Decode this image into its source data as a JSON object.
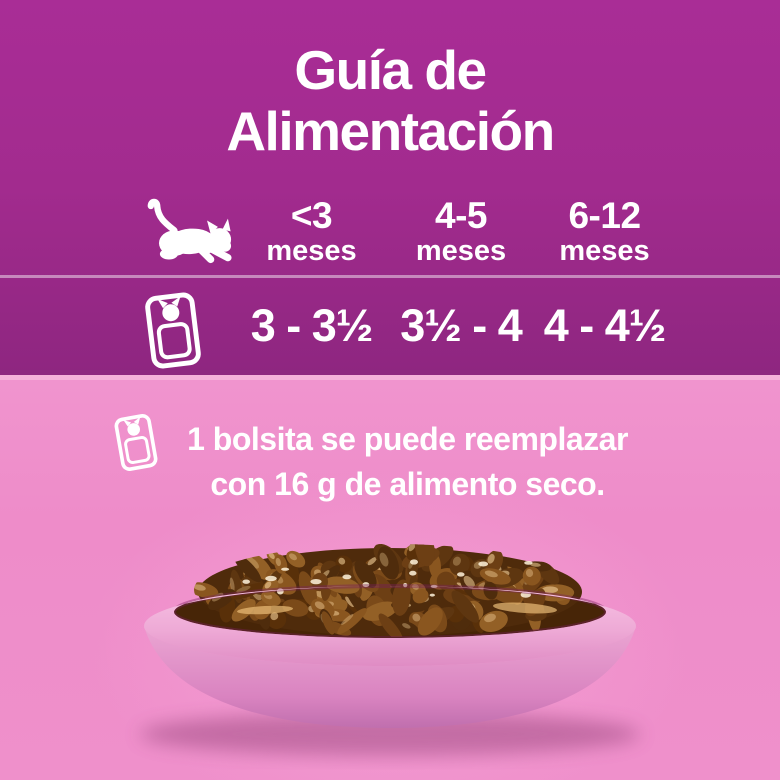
{
  "section_feeding_guide": {
    "title_line1": "Guía de",
    "title_line2": "Alimentación",
    "columns": [
      {
        "age": "<3",
        "age_unit": "meses",
        "pouches_per_day": "3 - 3½"
      },
      {
        "age": "4-5",
        "age_unit": "meses",
        "pouches_per_day": "3½ - 4"
      },
      {
        "age": "6-12",
        "age_unit": "meses",
        "pouches_per_day": "4 - 4½"
      }
    ],
    "row_icons": {
      "age_row": "kitten-silhouette-icon",
      "amount_row": "food-pouch-icon"
    }
  },
  "section_note": {
    "icon": "food-pouch-icon",
    "line1": "1 bolsita se puede reemplazar",
    "line2": "con 16 g de alimento seco."
  },
  "photo_subject": "pink plate with brown wet cat food chunks in gravy",
  "colors": {
    "purple": "#a22b8e",
    "purple_dark": "#8e2680",
    "pink_background": "#ee8cc9",
    "pink_divider": "#f5b0da",
    "plate_pink": "#eeaad6",
    "food_brown": "#6d3f14",
    "text": "#ffffff"
  }
}
